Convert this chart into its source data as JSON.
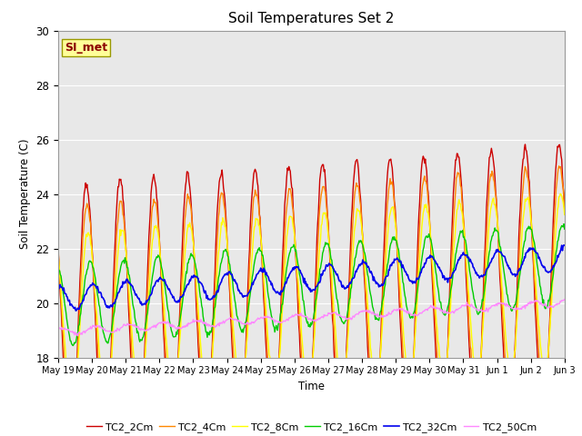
{
  "title": "Soil Temperatures Set 2",
  "ylabel": "Soil Temperature (C)",
  "xlabel": "Time",
  "ylim": [
    18,
    30
  ],
  "annotation_text": "SI_met",
  "series_labels": [
    "TC2_2Cm",
    "TC2_4Cm",
    "TC2_8Cm",
    "TC2_16Cm",
    "TC2_32Cm",
    "TC2_50Cm"
  ],
  "series_colors": [
    "#cc0000",
    "#ff8800",
    "#ffff00",
    "#00cc00",
    "#0000ee",
    "#ff88ff"
  ],
  "series_linewidths": [
    1.0,
    1.0,
    1.0,
    1.0,
    1.2,
    1.0
  ],
  "background_color": "#e8e8e8",
  "n_days": 15,
  "tick_labels": [
    "May 19",
    "May 20",
    "May 21",
    "May 22",
    "May 23",
    "May 24",
    "May 25",
    "May 26",
    "May 27",
    "May 28",
    "May 29",
    "May 30",
    "May 31",
    "Jun 1",
    "Jun 2",
    "Jun 3"
  ],
  "samples_per_day": 48
}
